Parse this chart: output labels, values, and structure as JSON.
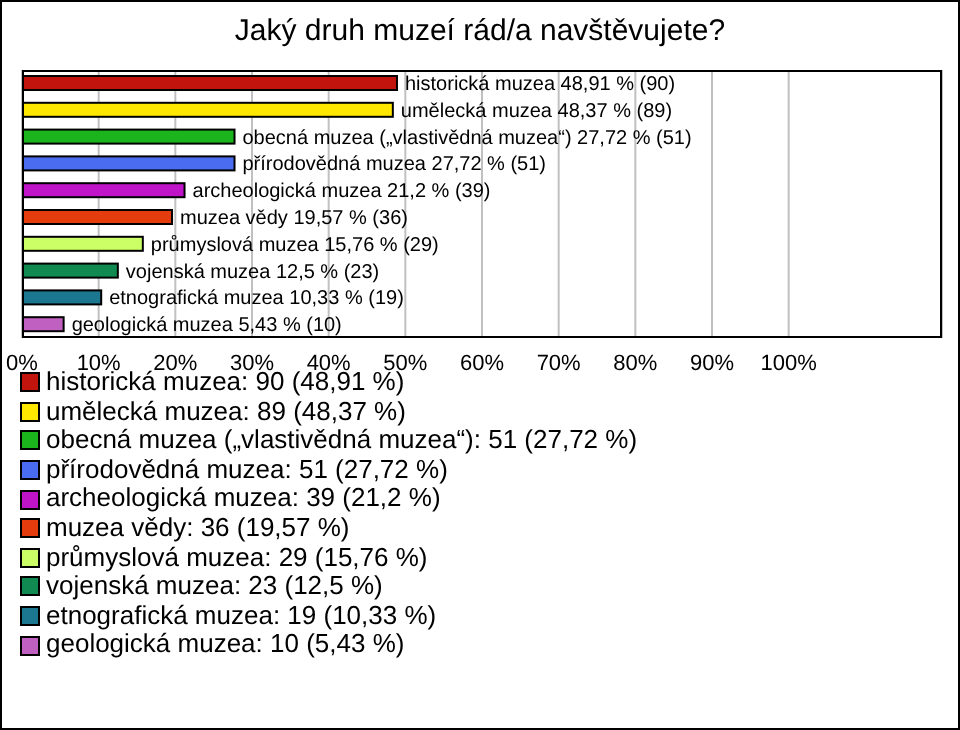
{
  "chart_data": {
    "type": "bar",
    "title": "Jaký druh muzeí rád/a navštěvujete?",
    "orientation": "horizontal",
    "stacked": true,
    "categories": [
      null,
      null,
      null,
      null,
      null,
      null,
      null,
      null,
      null,
      null
    ],
    "xlim": [
      0,
      120
    ],
    "xticks": [
      {
        "value": 0,
        "label": "0%"
      },
      {
        "value": 10,
        "label": "10%"
      },
      {
        "value": 20,
        "label": "20%"
      },
      {
        "value": 30,
        "label": "30%"
      },
      {
        "value": 40,
        "label": "40%"
      },
      {
        "value": 50,
        "label": "50%"
      },
      {
        "value": 60,
        "label": "60%"
      },
      {
        "value": 70,
        "label": "70%"
      },
      {
        "value": 80,
        "label": "80%"
      },
      {
        "value": 90,
        "label": "90%"
      },
      {
        "value": 100,
        "label": "100%"
      }
    ],
    "grid": "x",
    "legend": "bottom",
    "tick_labels": "x",
    "series": [
      {
        "name": "historická muzea: 90 (48,91 %)",
        "color": "#c0140c",
        "values": [
          48.91,
          null,
          null,
          null,
          null,
          null,
          null,
          null,
          null,
          null
        ],
        "value_labels": [
          "historická muzea 48,91 % (90)",
          null,
          null,
          null,
          null,
          null,
          null,
          null,
          null,
          null
        ]
      },
      {
        "name": "umělecká muzea: 89 (48,37 %)",
        "color": "#ffe800",
        "values": [
          null,
          48.37,
          null,
          null,
          null,
          null,
          null,
          null,
          null,
          null
        ],
        "value_labels": [
          null,
          "umělecká muzea 48,37 % (89)",
          null,
          null,
          null,
          null,
          null,
          null,
          null,
          null
        ]
      },
      {
        "name": "obecná muzea („vlastivědná muzea“): 51 (27,72 %)",
        "color": "#1cb41c",
        "values": [
          null,
          null,
          27.72,
          null,
          null,
          null,
          null,
          null,
          null,
          null
        ],
        "value_labels": [
          null,
          null,
          "obecná muzea („vlastivědná muzea“) 27,72 % (51)",
          null,
          null,
          null,
          null,
          null,
          null,
          null
        ]
      },
      {
        "name": "přírodovědná muzea: 51 (27,72 %)",
        "color": "#4a6cf0",
        "values": [
          null,
          null,
          null,
          27.72,
          null,
          null,
          null,
          null,
          null,
          null
        ],
        "value_labels": [
          null,
          null,
          null,
          "přírodovědná muzea 27,72 % (51)",
          null,
          null,
          null,
          null,
          null,
          null
        ]
      },
      {
        "name": "archeologická muzea: 39 (21,2 %)",
        "color": "#c014c8",
        "values": [
          null,
          null,
          null,
          null,
          21.2,
          null,
          null,
          null,
          null,
          null
        ],
        "value_labels": [
          null,
          null,
          null,
          null,
          "archeologická muzea 21,2 % (39)",
          null,
          null,
          null,
          null,
          null
        ]
      },
      {
        "name": "muzea vědy: 36 (19,57 %)",
        "color": "#e43c0c",
        "values": [
          null,
          null,
          null,
          null,
          null,
          19.57,
          null,
          null,
          null,
          null
        ],
        "value_labels": [
          null,
          null,
          null,
          null,
          null,
          "muzea vědy 19,57 % (36)",
          null,
          null,
          null,
          null
        ]
      },
      {
        "name": "průmyslová muzea: 29 (15,76 %)",
        "color": "#ccff66",
        "values": [
          null,
          null,
          null,
          null,
          null,
          null,
          15.76,
          null,
          null,
          null
        ],
        "value_labels": [
          null,
          null,
          null,
          null,
          null,
          null,
          "průmyslová muzea 15,76 % (29)",
          null,
          null,
          null
        ]
      },
      {
        "name": "vojenská muzea: 23 (12,5 %)",
        "color": "#108a50",
        "values": [
          null,
          null,
          null,
          null,
          null,
          null,
          null,
          12.5,
          null,
          null
        ],
        "value_labels": [
          null,
          null,
          null,
          null,
          null,
          null,
          null,
          "vojenská muzea 12,5 % (23)",
          null,
          null
        ]
      },
      {
        "name": "etnografická muzea: 19 (10,33 %)",
        "color": "#1c7890",
        "values": [
          null,
          null,
          null,
          null,
          null,
          null,
          null,
          null,
          10.33,
          null
        ],
        "value_labels": [
          null,
          null,
          null,
          null,
          null,
          null,
          null,
          null,
          "etnografická muzea 10,33 % (19)",
          null
        ]
      },
      {
        "name": "geologická muzea: 10 (5,43 %)",
        "color": "#c060c0",
        "values": [
          null,
          null,
          null,
          null,
          null,
          null,
          null,
          null,
          null,
          5.43
        ],
        "value_labels": [
          null,
          null,
          null,
          null,
          null,
          null,
          null,
          null,
          null,
          "geologická muzea 5,43 % (10)"
        ]
      }
    ]
  }
}
